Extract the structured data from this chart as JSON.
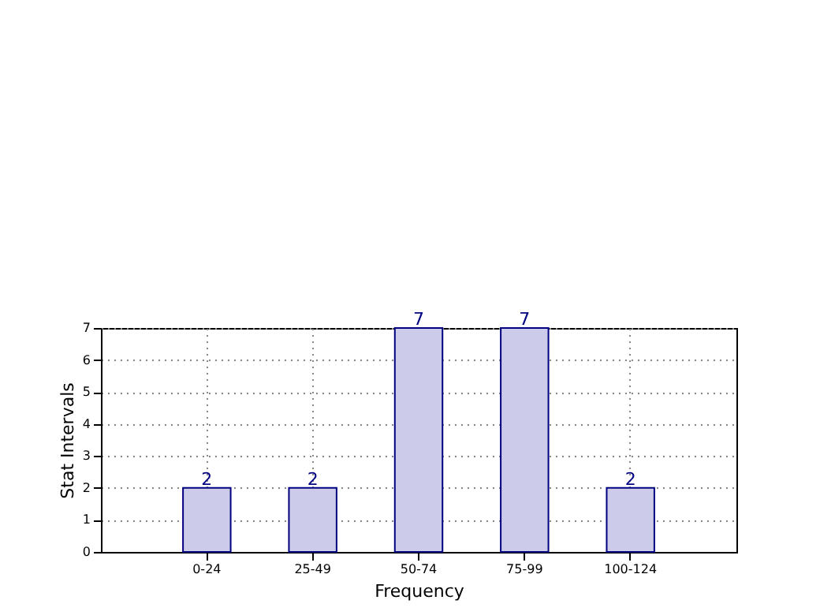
{
  "chart_data": {
    "type": "bar",
    "xlabel": "Frequency",
    "ylabel": "Stat Intervals",
    "categories": [
      "0-24",
      "25-49",
      "50-74",
      "75-99",
      "100-124"
    ],
    "values": [
      2,
      2,
      7,
      7,
      2
    ],
    "color": "#ccccea",
    "ylim": [
      0,
      7
    ],
    "yticks": [
      0,
      1,
      2,
      3,
      4,
      5,
      6,
      7
    ],
    "grid": true,
    "data_labels": true
  }
}
